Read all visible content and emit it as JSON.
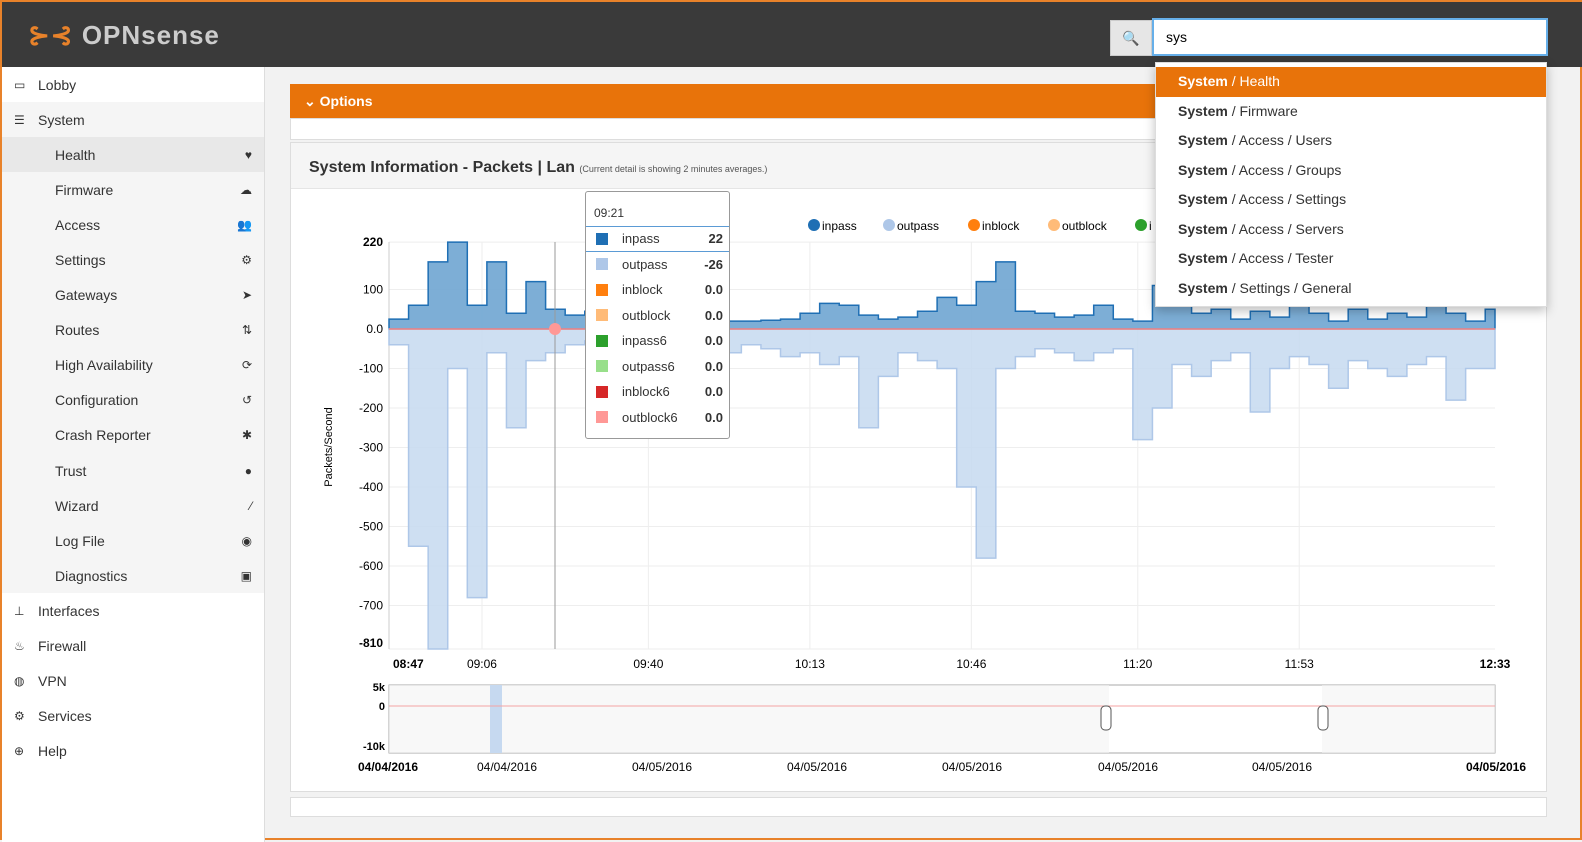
{
  "header": {
    "logo": "OPNsense",
    "search_icon": "search-icon",
    "search_value": "sys"
  },
  "search_results": [
    "System / Health",
    "System / Firmware",
    "System / Access / Users",
    "System / Access / Groups",
    "System / Access / Settings",
    "System / Access / Servers",
    "System / Access / Tester",
    "System / Settings / General"
  ],
  "sidebar": {
    "items": [
      {
        "label": "Lobby",
        "icon": "laptop-icon",
        "level": 0
      },
      {
        "label": "System",
        "icon": "server-icon",
        "level": 0
      },
      {
        "label": "Health",
        "icon": "heartbeat-icon",
        "level": 1,
        "active": true
      },
      {
        "label": "Firmware",
        "icon": "cloud-download-icon",
        "level": 1
      },
      {
        "label": "Access",
        "icon": "users-icon",
        "level": 1
      },
      {
        "label": "Settings",
        "icon": "cogs-icon",
        "level": 1
      },
      {
        "label": "Gateways",
        "icon": "location-arrow-icon",
        "level": 1
      },
      {
        "label": "Routes",
        "icon": "map-signs-icon",
        "level": 1
      },
      {
        "label": "High Availability",
        "icon": "refresh-icon",
        "level": 1
      },
      {
        "label": "Configuration",
        "icon": "history-icon",
        "level": 1
      },
      {
        "label": "Crash Reporter",
        "icon": "bug-icon",
        "level": 1
      },
      {
        "label": "Trust",
        "icon": "certificate-icon",
        "level": 1
      },
      {
        "label": "Wizard",
        "icon": "magic-icon",
        "level": 1
      },
      {
        "label": "Log File",
        "icon": "eye-icon",
        "level": 1
      },
      {
        "label": "Diagnostics",
        "icon": "medkit-icon",
        "level": 1
      },
      {
        "label": "Interfaces",
        "icon": "sitemap-icon",
        "level": 0
      },
      {
        "label": "Firewall",
        "icon": "fire-icon",
        "level": 0
      },
      {
        "label": "VPN",
        "icon": "globe-icon",
        "level": 0
      },
      {
        "label": "Services",
        "icon": "cog-icon",
        "level": 0
      },
      {
        "label": "Help",
        "icon": "life-ring-icon",
        "level": 0
      }
    ]
  },
  "options": {
    "label": "Options"
  },
  "panel": {
    "title": "System Information - Packets | Lan",
    "subtitle": "(Current detail is showing 2 minutes averages.)"
  },
  "tooltip": {
    "time": "09:21",
    "rows": [
      {
        "name": "inpass",
        "value": "22",
        "color": "#1f6fb4"
      },
      {
        "name": "outpass",
        "value": "-26",
        "color": "#aec7e8"
      },
      {
        "name": "inblock",
        "value": "0.0",
        "color": "#ff7f0e"
      },
      {
        "name": "outblock",
        "value": "0.0",
        "color": "#ffbb78"
      },
      {
        "name": "inpass6",
        "value": "0.0",
        "color": "#2ca02c"
      },
      {
        "name": "outpass6",
        "value": "0.0",
        "color": "#98df8a"
      },
      {
        "name": "inblock6",
        "value": "0.0",
        "color": "#d62728"
      },
      {
        "name": "outblock6",
        "value": "0.0",
        "color": "#ff9896"
      }
    ]
  },
  "chart_data": {
    "type": "area",
    "ylabel": "Packets/Second",
    "ylim": [
      -810,
      220
    ],
    "yticks": [
      "220",
      "100",
      "0.0",
      "-100",
      "-200",
      "-300",
      "-400",
      "-500",
      "-600",
      "-700",
      "-810"
    ],
    "xticks": [
      "08:47",
      "09:06",
      "09:40",
      "10:13",
      "10:46",
      "11:20",
      "11:53",
      "12:33"
    ],
    "legend": [
      "inpass",
      "outpass",
      "inblock",
      "outblock",
      "i"
    ],
    "legend_colors": [
      "#1f6fb4",
      "#aec7e8",
      "#ff7f0e",
      "#ffbb78",
      "#2ca02c"
    ],
    "legend_position": "top-right",
    "grid": true,
    "x": [
      "08:47",
      "08:51",
      "08:55",
      "08:59",
      "09:03",
      "09:07",
      "09:11",
      "09:15",
      "09:19",
      "09:23",
      "09:27",
      "09:31",
      "09:35",
      "09:39",
      "09:43",
      "09:47",
      "09:51",
      "09:55",
      "09:59",
      "10:03",
      "10:07",
      "10:11",
      "10:15",
      "10:19",
      "10:23",
      "10:27",
      "10:31",
      "10:35",
      "10:39",
      "10:43",
      "10:47",
      "10:51",
      "10:55",
      "10:59",
      "11:03",
      "11:07",
      "11:11",
      "11:15",
      "11:19",
      "11:23",
      "11:27",
      "11:31",
      "11:35",
      "11:39",
      "11:43",
      "11:47",
      "11:51",
      "11:55",
      "11:59",
      "12:03",
      "12:07",
      "12:11",
      "12:15",
      "12:19",
      "12:23",
      "12:27",
      "12:31"
    ],
    "series": [
      {
        "name": "inpass",
        "values": [
          25,
          60,
          170,
          220,
          60,
          170,
          40,
          120,
          50,
          35,
          45,
          22,
          30,
          25,
          30,
          28,
          60,
          20,
          20,
          22,
          25,
          40,
          65,
          60,
          35,
          25,
          30,
          45,
          80,
          60,
          120,
          170,
          45,
          40,
          30,
          35,
          60,
          25,
          20,
          110,
          60,
          40,
          50,
          25,
          45,
          30,
          60,
          40,
          20,
          50,
          25,
          40,
          30,
          60,
          40,
          20,
          50
        ]
      },
      {
        "name": "outpass",
        "values": [
          -40,
          -550,
          -810,
          -100,
          -680,
          -60,
          -250,
          -80,
          -60,
          -40,
          -30,
          -26,
          -50,
          -40,
          -60,
          -50,
          -80,
          -60,
          -40,
          -50,
          -70,
          -60,
          -90,
          -70,
          -250,
          -120,
          -60,
          -80,
          -100,
          -400,
          -580,
          -100,
          -70,
          -50,
          -60,
          -80,
          -60,
          -50,
          -280,
          -200,
          -90,
          -120,
          -80,
          -60,
          -210,
          -100,
          -70,
          -90,
          -150,
          -80,
          -100,
          -120,
          -90,
          -70,
          -180,
          -100,
          -100
        ]
      }
    ],
    "navigator": {
      "yticks": [
        "5k",
        "0",
        "-10k"
      ],
      "xticks": [
        "04/04/2016",
        "04/04/2016",
        "04/05/2016",
        "04/05/2016",
        "04/05/2016",
        "04/05/2016",
        "04/05/2016",
        "04/05/2016"
      ]
    }
  }
}
